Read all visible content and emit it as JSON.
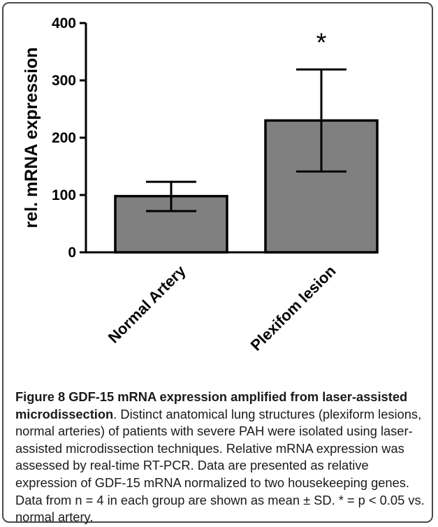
{
  "chart_data": {
    "type": "bar",
    "categories": [
      "Normal Artery",
      "Plexifom lesion"
    ],
    "values": [
      98,
      230
    ],
    "error_upper": [
      123,
      319
    ],
    "error_lower": [
      72,
      141
    ],
    "annotations": [
      "",
      "*"
    ],
    "xlabel": "",
    "ylabel": "rel. mRNA expression",
    "ylim": [
      0,
      400
    ],
    "yticks": [
      0,
      100,
      200,
      300,
      400
    ],
    "grid": false,
    "bar_color": "#808080"
  },
  "caption": {
    "figure_label": "Figure 8",
    "title": "GDF-15 mRNA expression amplified from laser-assisted microdissection",
    "body": ". Distinct anatomical lung structures (plexiform lesions, normal arteries) of patients with severe PAH were isolated using laser-assisted microdissection techniques. Relative mRNA expression was assessed by real-time RT-PCR. Data are presented as relative expression of GDF-15 mRNA normalized to two housekeeping genes. Data from n = 4 in each group are shown as mean ± SD. * = p < 0.05 vs. normal artery."
  }
}
